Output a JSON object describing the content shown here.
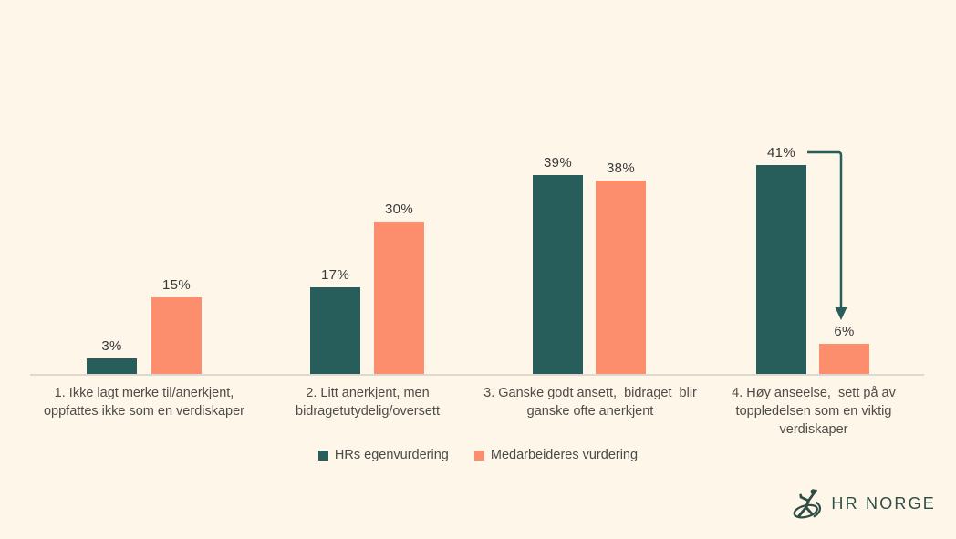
{
  "chart_data": {
    "type": "bar",
    "title": "",
    "xlabel": "",
    "ylabel": "",
    "ylim": [
      0,
      45
    ],
    "grid": false,
    "legend_position": "bottom-center",
    "value_suffix": "%",
    "categories": [
      "1. Ikke lagt merke til/anerkjent, oppfattes ikke som en verdiskaper",
      "2. Litt anerkjent, men bidragetutydelig/oversett",
      "3. Ganske godt ansett,  bidraget  blir ganske ofte anerkjent",
      "4. Høy anseelse,  sett på av toppledelsen som en viktig verdiskaper"
    ],
    "categories_wrapped": [
      [
        "1. Ikke lagt merke til/anerkjent,",
        "oppfattes ikke som en verdiskaper"
      ],
      [
        "2. Litt anerkjent, men",
        "bidragetutydelig/oversett"
      ],
      [
        "3. Ganske godt ansett,  bidraget  blir",
        "ganske ofte anerkjent"
      ],
      [
        "4. Høy anseelse,  sett på av",
        "toppledelsen som en viktig",
        "verdiskaper"
      ]
    ],
    "series": [
      {
        "name": "HRs egenvurdering",
        "color": "#275E5B",
        "values": [
          3,
          17,
          39,
          41
        ]
      },
      {
        "name": "Medarbeideres vurdering",
        "color": "#FC8E6E",
        "values": [
          15,
          30,
          38,
          6
        ]
      }
    ],
    "annotation": {
      "shape": "elbow-arrow",
      "meaning": "drop from HRs egenvurdering 41% to Medarbeideres vurdering 6% in category 4",
      "color": "#275E5B"
    }
  },
  "branding": {
    "logo_text": "HR NORGE",
    "logo_icon": "dancer-ribbon-icon",
    "logo_color": "#2E4D45"
  },
  "colors": {
    "background": "#FDF6E9",
    "axis_line": "#DDD9D1",
    "value_label": "#3A3A3A",
    "category_label": "#4F4B46",
    "legend_label": "#4A4A4A"
  }
}
